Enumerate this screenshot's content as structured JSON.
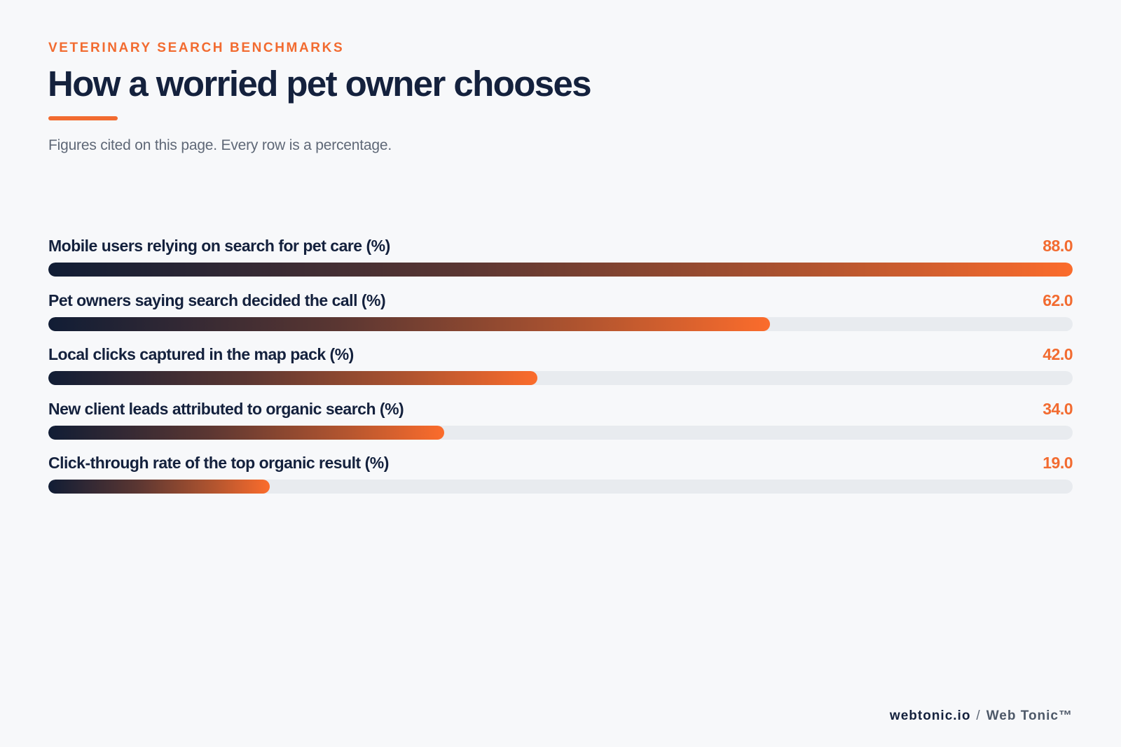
{
  "header": {
    "eyebrow": "VETERINARY SEARCH BENCHMARKS",
    "title": "How a worried pet owner chooses",
    "subtitle": "Figures cited on this page. Every row is a percentage."
  },
  "chart_data": {
    "type": "bar",
    "orientation": "horizontal",
    "xlim": [
      0,
      100
    ],
    "categories": [
      "Mobile users relying on search for pet care (%)",
      "Pet owners saying search decided the call (%)",
      "Local clicks captured in the map pack (%)",
      "New client leads attributed to organic search (%)",
      "Click-through rate of the top organic result (%)"
    ],
    "values": [
      88.0,
      62.0,
      42.0,
      34.0,
      19.0
    ],
    "value_labels": [
      "88.0",
      "62.0",
      "42.0",
      "34.0",
      "19.0"
    ],
    "colors": {
      "bar_start": "#111d35",
      "bar_end": "#fb6c2c",
      "track": "#e8ebef",
      "value": "#f26b30"
    }
  },
  "footer": {
    "domain": "webtonic.io",
    "separator": "/",
    "brand": "Web Tonic™"
  }
}
